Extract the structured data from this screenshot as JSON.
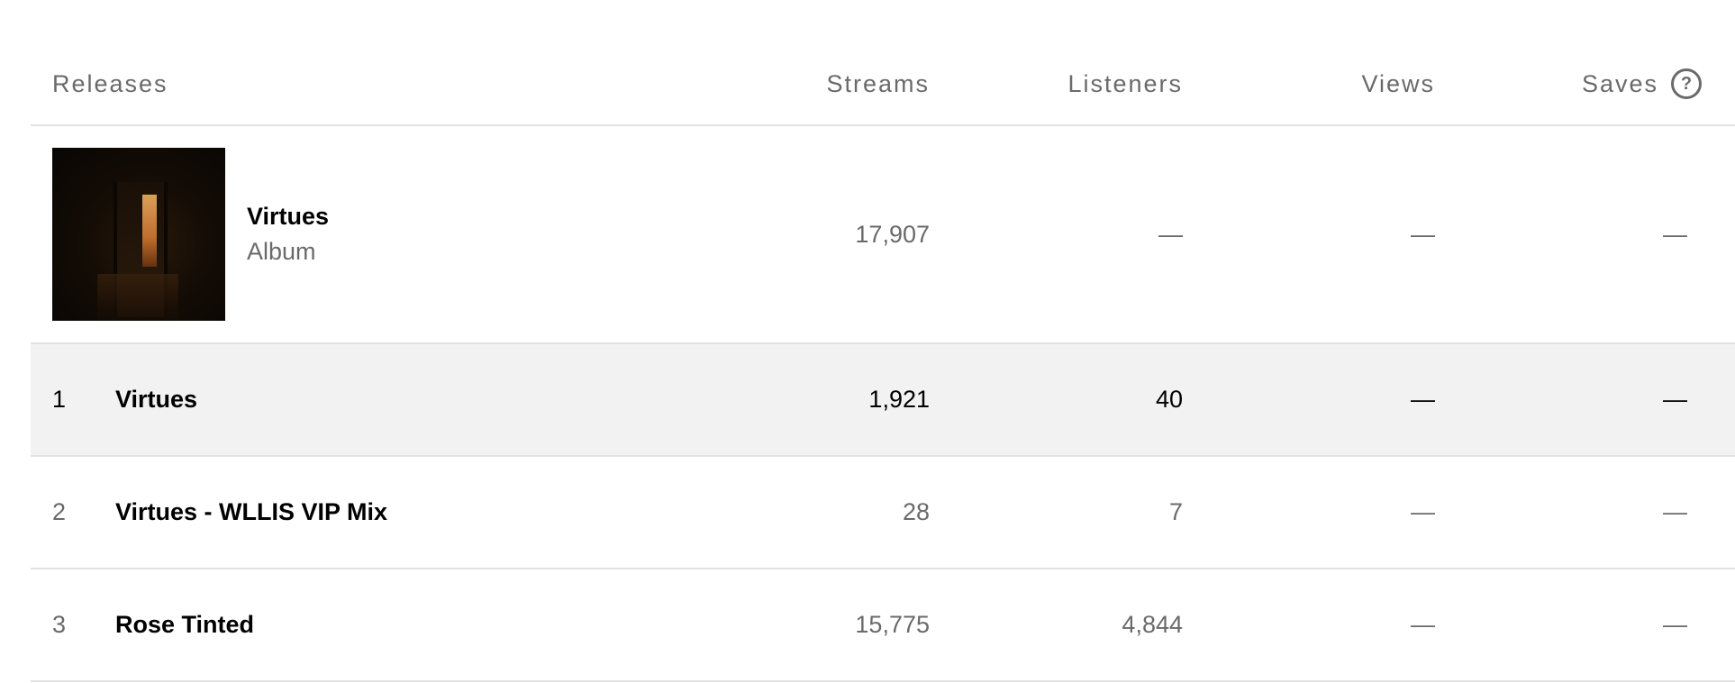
{
  "header": {
    "releases": "Releases",
    "streams": "Streams",
    "listeners": "Listeners",
    "views": "Views",
    "saves": "Saves",
    "saves_help": "?"
  },
  "album": {
    "title": "Virtues",
    "type": "Album",
    "streams": "17,907",
    "listeners": "—",
    "views": "—",
    "saves": "—"
  },
  "tracks": [
    {
      "index": "1",
      "title": "Virtues",
      "streams": "1,921",
      "listeners": "40",
      "views": "—",
      "saves": "—",
      "highlighted": true
    },
    {
      "index": "2",
      "title": "Virtues - WLLIS VIP Mix",
      "streams": "28",
      "listeners": "7",
      "views": "—",
      "saves": "—",
      "highlighted": false
    },
    {
      "index": "3",
      "title": "Rose Tinted",
      "streams": "15,775",
      "listeners": "4,844",
      "views": "—",
      "saves": "—",
      "highlighted": false
    }
  ],
  "colors": {
    "muted_text": "#6a6a6a",
    "divider": "#e2e2e2",
    "highlight_row": "#f2f2f2"
  }
}
